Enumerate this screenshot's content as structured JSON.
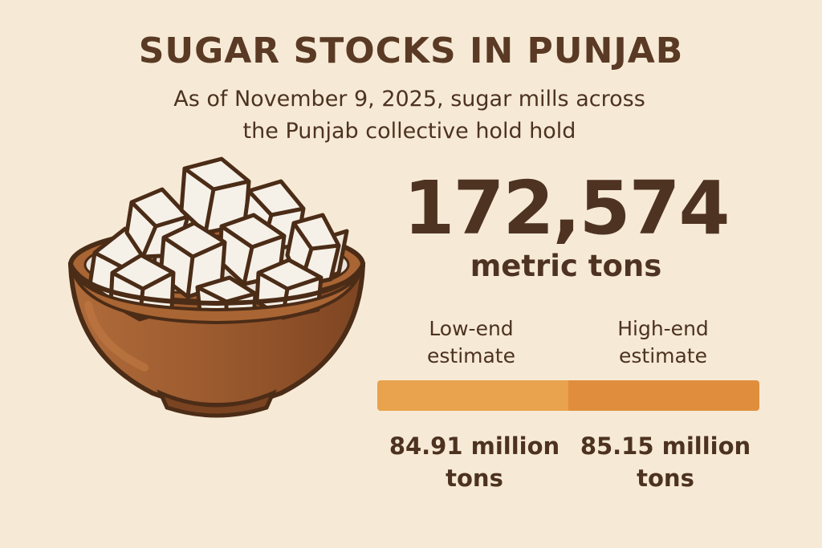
{
  "header": {
    "title": "SUGAR STOCKS IN PUNJAB",
    "subtitle_line1": "As of November 9, 2025, sugar mills across",
    "subtitle_line2": "the Punjab collective hold hold"
  },
  "headline_stat": {
    "value": "172,574",
    "unit": "metric tons"
  },
  "estimates": {
    "low": {
      "label_line1": "Low-end",
      "label_line2": "estimate",
      "value_line1": "84.91 million",
      "value_line2": "tons",
      "amount_million_tons": 84.91
    },
    "high": {
      "label_line1": "High-end",
      "label_line2": "estimate",
      "value_line1": "85.15 million",
      "value_line2": "tons",
      "amount_million_tons": 85.15
    }
  },
  "illustration": {
    "name": "bowl-of-sugar-cubes"
  },
  "colors": {
    "background": "#f6ead7",
    "text": "#5a3a24",
    "bar_low": "#e9a24e",
    "bar_high": "#e08e3d",
    "bowl": "#9b5a2e"
  }
}
